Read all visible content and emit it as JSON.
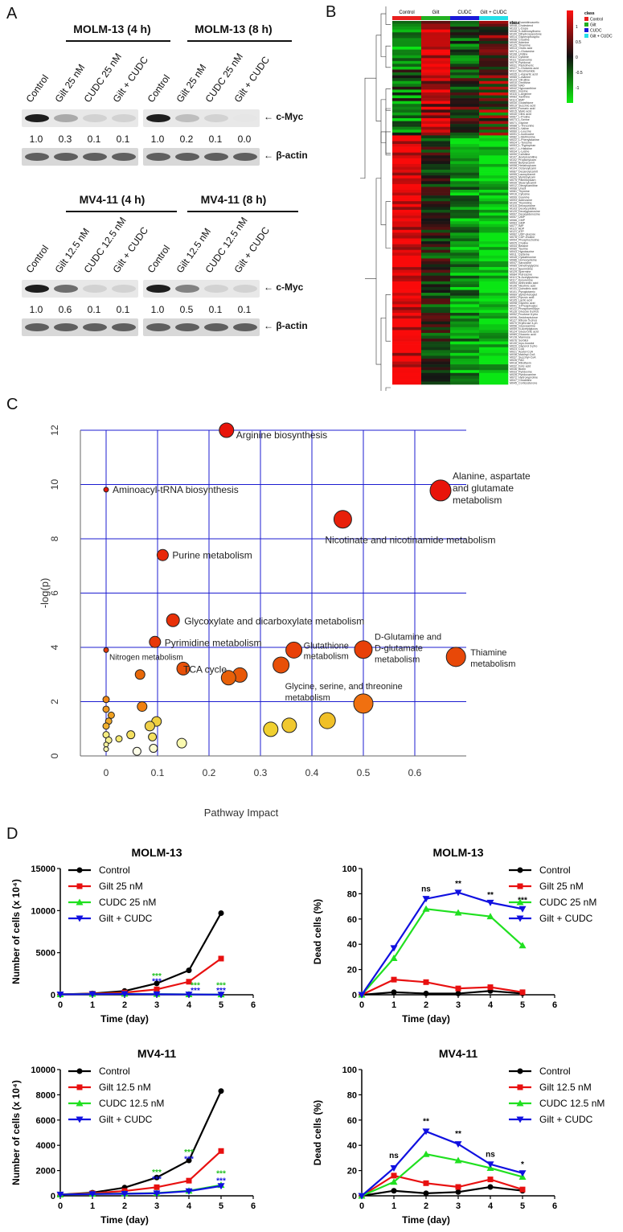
{
  "panels": {
    "a": "A",
    "b": "B",
    "c": "C",
    "d": "D"
  },
  "blots": {
    "molm4": {
      "title": "MOLM-13 (4 h)",
      "lanes": [
        "Control",
        "Gilt 25 nM",
        "CUDC 25 nM",
        "Gilt + CUDC"
      ],
      "ratios": [
        "1.0",
        "0.3",
        "0.1",
        "0.1"
      ],
      "band_intensity": [
        1.0,
        0.3,
        0.1,
        0.1
      ]
    },
    "molm8": {
      "title": "MOLM-13 (8 h)",
      "lanes": [
        "Control",
        "Gilt 25 nM",
        "CUDC 25 nM",
        "Gilt + CUDC"
      ],
      "ratios": [
        "1.0",
        "0.2",
        "0.1",
        "0.0"
      ],
      "band_intensity": [
        1.0,
        0.2,
        0.1,
        0.0
      ]
    },
    "mv4": {
      "title": "MV4-11 (4 h)",
      "lanes": [
        "Control",
        "Gilt 12.5 nM",
        "CUDC 12.5 nM",
        "Gilt + CUDC"
      ],
      "ratios": [
        "1.0",
        "0.6",
        "0.1",
        "0.1"
      ],
      "band_intensity": [
        1.0,
        0.6,
        0.1,
        0.1
      ]
    },
    "mv8": {
      "title": "MV4-11 (8 h)",
      "lanes": [
        "Control",
        "Gilt 12.5 nM",
        "CUDC 12.5 nM",
        "Gilt + CUDC"
      ],
      "ratios": [
        "1.0",
        "0.5",
        "0.1",
        "0.1"
      ],
      "band_intensity": [
        1.0,
        0.5,
        0.1,
        0.1
      ]
    },
    "labels": {
      "cmyc": "c-Myc",
      "actin": "β-actin",
      "arrow": "←"
    }
  },
  "heatmap": {
    "groups": [
      "Control",
      "Gilt",
      "CUDC",
      "Gilt + CUDC"
    ],
    "group_colors": [
      "#e8201e",
      "#22b022",
      "#1a1ad8",
      "#26e0e8"
    ],
    "legend_title": "class",
    "scale_ticks": [
      "1",
      "0.5",
      "0",
      "-0.5",
      "-1"
    ],
    "row_labels": [
      "M132_Guanidinoacetic",
      "M048_Cholesterol",
      "M133_L-Dopa",
      "M046_S-Adenosylhomo",
      "M100_Dihydroxyacetone",
      "M014_Glycerophospho",
      "M058_Creatine",
      "M049_Adenine",
      "M125_Thiamine",
      "M013_Orotic acid",
      "M074_L-Glutamine",
      "M108_Uridine",
      "M110_Cytidine",
      "M111_Guanosine",
      "M079_Pyridoxal",
      "M031_Pantothenic",
      "M027_L-Glutamic acid",
      "M112_Nicotinamide",
      "M035_L-Aspartic acid",
      "M065_L-Alanine",
      "M123_Citrulline",
      "M010_Ornithine",
      "M050_NAD",
      "M042_Hypoxanthine",
      "M061_Inosine",
      "M116_L-Arginine",
      "M083_Xanthine",
      "M114_AMP",
      "M030_Glutathione",
      "M019_Succinic acid",
      "M092_Fumaric acid",
      "M015_Malic acid",
      "M040_Citric acid",
      "M067_L-Proline",
      "M073_L-Serine",
      "M071_Glycine",
      "M088_L-Threonine",
      "M064_L-Valine",
      "M060_L-Leucine",
      "M091_L-Isoleucine",
      "M082_L-Methionine",
      "M022_L-Phenylalanine",
      "M024_L-Tyrosine",
      "M053_L-Tryptophan",
      "M017_L-Histidine",
      "M034_L-Lysine",
      "M090_Carnitine",
      "M107_Acetylcarnitine",
      "M102_Propionylcarn",
      "M095_Butyrylcarnit",
      "M058_Hexanoylcarn",
      "M104_Octanoylcarni",
      "M087_Decanoylcarnit",
      "M055_Lauroylcarnit",
      "M029_Myristoylcarn",
      "M075_Palmitoylcarn",
      "M039_Stearoylcarnit",
      "M012_Oleoylcarnitine",
      "M068_Uracil",
      "M081_Thymine",
      "M016_Cytosine",
      "M099_Guanine",
      "M093_Adenosine",
      "M109_Thymidine",
      "M118_Deoxyuridine",
      "M103_Deoxycytidine",
      "M120_Deoxyguanosine",
      "M097_Deoxyadenosine",
      "M057_UMP",
      "M066_CMP",
      "M063_GMP",
      "M077_IMP",
      "M115_ADP",
      "M121_ATP",
      "M062_UDP-glucose",
      "M078_CDP-choline",
      "M054_Phosphocholine",
      "M025_Choline",
      "M044_Betaine",
      "M080_Taurine",
      "M043_Hypotaurine",
      "M011_Cysteine",
      "M045_Cystathionine",
      "M086_Homocysteine",
      "M047_Sarcosine",
      "M085_Dimethylglycine",
      "M119_Spermidine",
      "M129_Spermine",
      "M084_Putrescine",
      "M113_N-Acetylputresc",
      "M117_Kynurenine",
      "M094_Anthranilic acid",
      "M106_Nicotinic acid",
      "M131_Quinolinic acid",
      "M101_Pyroglutamic",
      "M069_alpha-Ketoglut",
      "M051_Pyruvic acid",
      "M105_Lactic acid",
      "M098_Glyceric acid",
      "M041_3-Phosphoglyc",
      "M122_Phosphoenolpyr",
      "M126_Glucose 6-phos",
      "M052_Fructose 6-pho",
      "M096_Sedoheptulose",
      "M127_Ribose 5-phos",
      "M070_Erythrose 4-ph",
      "M056_Glucosamine",
      "M059_N-Acetylglucos",
      "M124_Glucuronic acid",
      "M089_Gluconic acid",
      "M128_Mannose",
      "M076_Sorbitol",
      "M130_myo-Inositol",
      "M020_Glycerol 3-pho",
      "M023_CoA",
      "M021_Acetyl-CoA",
      "M038_Malonyl-CoA",
      "M037_Succinyl-CoA",
      "M026_FAD",
      "M018_Riboflavin",
      "M032_Folic acid",
      "M036_Biotin",
      "M033_Pyridoxine",
      "M028_Pyridoxamine",
      "M072_Hydroxyproline",
      "M047_Creatinine",
      "M045_Corticosterone"
    ]
  },
  "chart_data": [
    {
      "type": "scatter",
      "panel": "C",
      "xlabel": "Pathway Impact",
      "ylabel": "-log(p)",
      "xlim": [
        -0.05,
        0.7
      ],
      "ylim": [
        0,
        12
      ],
      "xticks": [
        "0",
        "0.1",
        "0.2",
        "0.3",
        "0.4",
        "0.5",
        "0.6"
      ],
      "yticks": [
        "0",
        "2",
        "4",
        "6",
        "8",
        "10",
        "12"
      ],
      "grid": true,
      "points": [
        {
          "x": 0.234,
          "y": 12.0,
          "r": 9,
          "color": "#e8140a",
          "label": "Arginine biosynthesis"
        },
        {
          "x": 0.65,
          "y": 9.78,
          "r": 13,
          "color": "#e8140a",
          "label": "Alanine, aspartate, and glutamate metabolism"
        },
        {
          "x": 0.0,
          "y": 9.81,
          "r": 3,
          "color": "#e8140a",
          "label": "Aminoacyl-tRNA biosynthesis"
        },
        {
          "x": 0.46,
          "y": 8.72,
          "r": 11,
          "color": "#e8200a",
          "label": "Nicotinate and nicotinamide metabolism"
        },
        {
          "x": 0.11,
          "y": 7.4,
          "r": 7,
          "color": "#e8280a",
          "label": "Purine metabolism"
        },
        {
          "x": 0.13,
          "y": 5.0,
          "r": 8,
          "color": "#e83008",
          "label": "Glycoxylate and dicarboxylate metabolism"
        },
        {
          "x": 0.095,
          "y": 4.2,
          "r": 7,
          "color": "#e83808",
          "label": "Pyrimidine metabolism"
        },
        {
          "x": 0.0,
          "y": 3.9,
          "r": 3,
          "color": "#e83808",
          "label": "Nitrogen metabolism"
        },
        {
          "x": 0.365,
          "y": 3.9,
          "r": 10,
          "color": "#e84008",
          "label": "Glutathione metabolism"
        },
        {
          "x": 0.5,
          "y": 3.92,
          "r": 11,
          "color": "#e84008",
          "label": "D-Glutamine and D-glutamate metabolism"
        },
        {
          "x": 0.68,
          "y": 3.65,
          "r": 12,
          "color": "#e84808",
          "label": "Thiamine metabolism"
        },
        {
          "x": 0.15,
          "y": 3.22,
          "r": 8,
          "color": "#e85008",
          "label": "TCA cycle"
        },
        {
          "x": 0.34,
          "y": 3.35,
          "r": 10,
          "color": "#e85008",
          "label": "Glycine, serine, and threonine metabolism"
        },
        {
          "x": 0.26,
          "y": 2.98,
          "r": 9,
          "color": "#e85808",
          "label": ""
        },
        {
          "x": 0.238,
          "y": 2.88,
          "r": 9,
          "color": "#e86008",
          "label": ""
        },
        {
          "x": 0.066,
          "y": 3.0,
          "r": 6,
          "color": "#e86808",
          "label": ""
        },
        {
          "x": 0.5,
          "y": 1.93,
          "r": 12,
          "color": "#f07010",
          "label": ""
        },
        {
          "x": 0.07,
          "y": 1.82,
          "r": 6,
          "color": "#f08010",
          "label": ""
        },
        {
          "x": 0.0,
          "y": 2.08,
          "r": 4,
          "color": "#f08818",
          "label": ""
        },
        {
          "x": 0.0,
          "y": 1.72,
          "r": 4,
          "color": "#f09820",
          "label": ""
        },
        {
          "x": 0.01,
          "y": 1.5,
          "r": 4,
          "color": "#f0a020",
          "label": ""
        },
        {
          "x": 0.005,
          "y": 1.28,
          "r": 4,
          "color": "#f0a828",
          "label": ""
        },
        {
          "x": 0.0,
          "y": 1.1,
          "r": 4,
          "color": "#f0b030",
          "label": ""
        },
        {
          "x": 0.43,
          "y": 1.3,
          "r": 10,
          "color": "#f0c028",
          "label": ""
        },
        {
          "x": 0.356,
          "y": 1.13,
          "r": 9,
          "color": "#f0c830",
          "label": ""
        },
        {
          "x": 0.32,
          "y": 0.98,
          "r": 9,
          "color": "#f0d030",
          "label": ""
        },
        {
          "x": 0.098,
          "y": 1.27,
          "r": 6,
          "color": "#f0d040",
          "label": ""
        },
        {
          "x": 0.085,
          "y": 1.1,
          "r": 6,
          "color": "#f0d048",
          "label": ""
        },
        {
          "x": 0.048,
          "y": 0.78,
          "r": 5,
          "color": "#f4e060",
          "label": ""
        },
        {
          "x": 0.09,
          "y": 0.7,
          "r": 5,
          "color": "#f4e060",
          "label": ""
        },
        {
          "x": 0.025,
          "y": 0.63,
          "r": 4,
          "color": "#f4e870",
          "label": ""
        },
        {
          "x": 0.0,
          "y": 0.78,
          "r": 4,
          "color": "#f4ec80",
          "label": ""
        },
        {
          "x": 0.005,
          "y": 0.58,
          "r": 4,
          "color": "#f6f090",
          "label": ""
        },
        {
          "x": 0.0,
          "y": 0.42,
          "r": 3,
          "color": "#f8f4a0",
          "label": ""
        },
        {
          "x": 0.0,
          "y": 0.25,
          "r": 3,
          "color": "#f8f6b0",
          "label": ""
        },
        {
          "x": 0.147,
          "y": 0.47,
          "r": 6,
          "color": "#fafab0",
          "label": ""
        },
        {
          "x": 0.092,
          "y": 0.28,
          "r": 5,
          "color": "#fcfcd0",
          "label": ""
        },
        {
          "x": 0.06,
          "y": 0.17,
          "r": 5,
          "color": "#fefee8",
          "label": ""
        }
      ]
    },
    {
      "type": "line",
      "title": "MOLM-13",
      "ylabel": "Number of cells (x 10⁴)",
      "xlabel": "Time (day)",
      "x": [
        0,
        1,
        2,
        3,
        4,
        5
      ],
      "xlim": [
        0,
        6
      ],
      "ylim": [
        0,
        15000
      ],
      "xticks": [
        "0",
        "1",
        "2",
        "3",
        "4",
        "5",
        "6"
      ],
      "yticks": [
        "0",
        "5000",
        "10000",
        "15000"
      ],
      "series": [
        {
          "name": "Control",
          "color": "#000000",
          "marker": "circle",
          "values": [
            50,
            150,
            450,
            1350,
            2900,
            9700
          ]
        },
        {
          "name": "Gilt 25 nM",
          "color": "#e81010",
          "marker": "square",
          "values": [
            50,
            120,
            260,
            640,
            1550,
            4300
          ]
        },
        {
          "name": "CUDC 25 nM",
          "color": "#20e020",
          "marker": "triangle-up",
          "values": [
            50,
            90,
            110,
            80,
            50,
            30
          ]
        },
        {
          "name": "Gilt + CUDC",
          "color": "#1010e0",
          "marker": "triangle-down",
          "values": [
            50,
            80,
            90,
            60,
            40,
            20
          ]
        }
      ],
      "annotations": [
        {
          "x": 3,
          "y": 1900,
          "text": "***",
          "color": "#20c020"
        },
        {
          "x": 3,
          "y": 1300,
          "text": "***",
          "color": "#1010e0"
        },
        {
          "x": 4.2,
          "y": 800,
          "text": "***",
          "color": "#20c020"
        },
        {
          "x": 4.2,
          "y": 200,
          "text": "***",
          "color": "#1010e0"
        },
        {
          "x": 5,
          "y": 800,
          "text": "***",
          "color": "#20c020"
        },
        {
          "x": 5,
          "y": 200,
          "text": "***",
          "color": "#1010e0"
        }
      ]
    },
    {
      "type": "line",
      "title": "MOLM-13",
      "ylabel": "Dead cells (%)",
      "xlabel": "Time (day)",
      "x": [
        0,
        1,
        2,
        3,
        4,
        5
      ],
      "xlim": [
        0,
        6
      ],
      "ylim": [
        0,
        100
      ],
      "xticks": [
        "0",
        "1",
        "2",
        "3",
        "4",
        "5",
        "6"
      ],
      "yticks": [
        "0",
        "20",
        "40",
        "60",
        "80",
        "100"
      ],
      "series": [
        {
          "name": "Control",
          "color": "#000000",
          "marker": "circle",
          "values": [
            0,
            2,
            1,
            1,
            3,
            1
          ]
        },
        {
          "name": "Gilt 25 nM",
          "color": "#e81010",
          "marker": "square",
          "values": [
            0,
            12,
            10,
            5,
            6,
            2
          ]
        },
        {
          "name": "CUDC 25 nM",
          "color": "#20e020",
          "marker": "triangle-up",
          "values": [
            0,
            29,
            68,
            65,
            62,
            39
          ]
        },
        {
          "name": "Gilt + CUDC",
          "color": "#1010e0",
          "marker": "triangle-down",
          "values": [
            0,
            37,
            76,
            81,
            73,
            68
          ]
        }
      ],
      "annotations": [
        {
          "x": 2,
          "y": 82,
          "text": "ns",
          "color": "#000000"
        },
        {
          "x": 3,
          "y": 86,
          "text": "**",
          "color": "#000000"
        },
        {
          "x": 4,
          "y": 77,
          "text": "**",
          "color": "#000000"
        },
        {
          "x": 5,
          "y": 73,
          "text": "***",
          "color": "#000000"
        }
      ]
    },
    {
      "type": "line",
      "title": "MV4-11",
      "ylabel": "Number of cells (x 10⁴)",
      "xlabel": "Time (day)",
      "x": [
        0,
        1,
        2,
        3,
        4,
        5
      ],
      "xlim": [
        0,
        6
      ],
      "ylim": [
        0,
        10000
      ],
      "xticks": [
        "0",
        "1",
        "2",
        "3",
        "4",
        "5",
        "6"
      ],
      "yticks": [
        "0",
        "2000",
        "4000",
        "6000",
        "8000",
        "10000"
      ],
      "series": [
        {
          "name": "Control",
          "color": "#000000",
          "marker": "circle",
          "values": [
            100,
            250,
            650,
            1450,
            2800,
            8300
          ]
        },
        {
          "name": "Gilt 12.5 nM",
          "color": "#e81010",
          "marker": "square",
          "values": [
            100,
            200,
            380,
            680,
            1200,
            3550
          ]
        },
        {
          "name": "CUDC 12.5 nM",
          "color": "#20e020",
          "marker": "triangle-up",
          "values": [
            100,
            150,
            180,
            220,
            400,
            850
          ]
        },
        {
          "name": "Gilt + CUDC",
          "color": "#1010e0",
          "marker": "triangle-down",
          "values": [
            100,
            140,
            160,
            200,
            370,
            780
          ]
        }
      ],
      "annotations": [
        {
          "x": 3,
          "y": 1650,
          "text": "***",
          "color": "#20c020"
        },
        {
          "x": 3,
          "y": 1100,
          "text": "***",
          "color": "#1010e0"
        },
        {
          "x": 4,
          "y": 3250,
          "text": "***",
          "color": "#20c020"
        },
        {
          "x": 4,
          "y": 2700,
          "text": "***",
          "color": "#1010e0"
        },
        {
          "x": 5,
          "y": 1550,
          "text": "***",
          "color": "#20c020"
        },
        {
          "x": 5,
          "y": 1000,
          "text": "***",
          "color": "#1010e0"
        }
      ]
    },
    {
      "type": "line",
      "title": "MV4-11",
      "ylabel": "Dead cells (%)",
      "xlabel": "Time (day)",
      "x": [
        0,
        1,
        2,
        3,
        4,
        5
      ],
      "xlim": [
        0,
        6
      ],
      "ylim": [
        0,
        100
      ],
      "xticks": [
        "0",
        "1",
        "2",
        "3",
        "4",
        "5",
        "6"
      ],
      "yticks": [
        "0",
        "20",
        "40",
        "60",
        "80",
        "100"
      ],
      "series": [
        {
          "name": "Control",
          "color": "#000000",
          "marker": "circle",
          "values": [
            0,
            4,
            2,
            3,
            7,
            4
          ]
        },
        {
          "name": "Gilt 12.5 nM",
          "color": "#e81010",
          "marker": "square",
          "values": [
            0,
            16,
            10,
            7,
            13,
            5
          ]
        },
        {
          "name": "CUDC 12.5 nM",
          "color": "#20e020",
          "marker": "triangle-up",
          "values": [
            0,
            11,
            33,
            28,
            22,
            15
          ]
        },
        {
          "name": "Gilt + CUDC",
          "color": "#1010e0",
          "marker": "triangle-down",
          "values": [
            0,
            22,
            51,
            41,
            25,
            18
          ]
        }
      ],
      "annotations": [
        {
          "x": 1,
          "y": 30,
          "text": "ns",
          "color": "#000000"
        },
        {
          "x": 2,
          "y": 57,
          "text": "**",
          "color": "#000000"
        },
        {
          "x": 3,
          "y": 47,
          "text": "**",
          "color": "#000000"
        },
        {
          "x": 4,
          "y": 31,
          "text": "ns",
          "color": "#000000"
        },
        {
          "x": 5,
          "y": 23,
          "text": "*",
          "color": "#000000"
        }
      ]
    }
  ]
}
